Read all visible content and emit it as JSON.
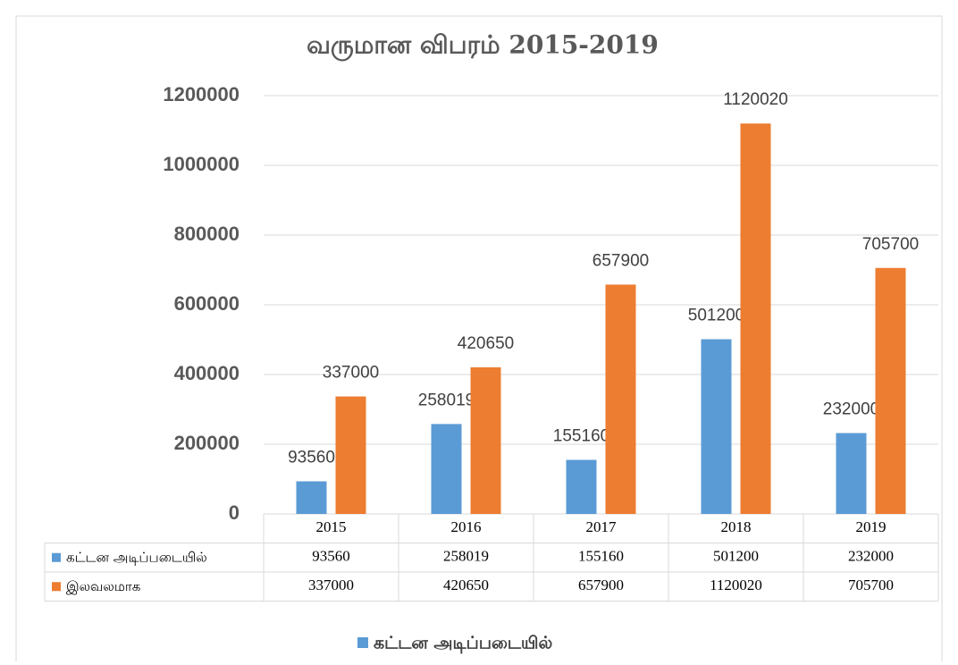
{
  "chart_data": {
    "type": "bar",
    "title": "வருமான விபரம் 2015-2019",
    "categories": [
      "2015",
      "2016",
      "2017",
      "2018",
      "2019"
    ],
    "series": [
      {
        "name": "கட்டன அடிப்படையில்",
        "color": "#5b9bd5",
        "values": [
          93560,
          258019,
          155160,
          501200,
          232000
        ]
      },
      {
        "name": "இலவலமாக",
        "color": "#ed7d31",
        "values": [
          337000,
          420650,
          657900,
          1120020,
          705700
        ]
      }
    ],
    "ylim": [
      0,
      1200000
    ],
    "yticks": [
      0,
      200000,
      400000,
      600000,
      800000,
      1000000,
      1200000
    ],
    "grid": true
  }
}
